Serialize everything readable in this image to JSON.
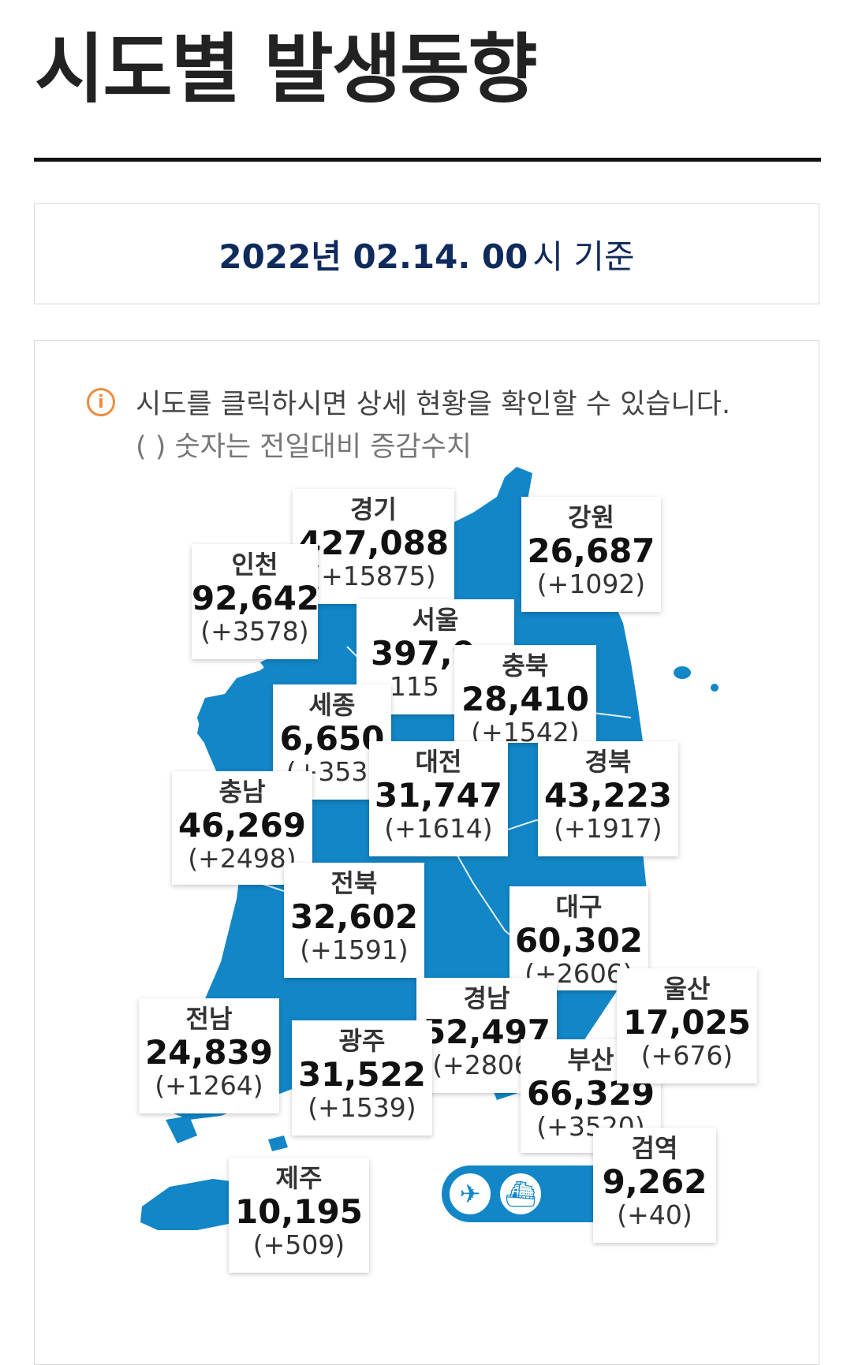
{
  "page": {
    "title": "시도별 발생동향",
    "date_bold": "2022년 02.14. 00",
    "date_suffix": "시 기준"
  },
  "notice": {
    "icon": "info-icon",
    "icon_glyph": "i",
    "line1": "시도를 클릭하시면 상세 현황을 확인할 수 있습니다.",
    "line2": "( ) 숫자는 전일대비 증감수치"
  },
  "colors": {
    "map_fill": "#1286c7",
    "title_navy": "#0f2a5c",
    "info_orange": "#f08a3c"
  },
  "regions": {
    "gyeonggi": {
      "name": "경기",
      "total": "427,088",
      "delta": "(+15875)"
    },
    "incheon": {
      "name": "인천",
      "total": "92,642",
      "delta": "(+3578)"
    },
    "gangwon": {
      "name": "강원",
      "total": "26,687",
      "delta": "(+1092)"
    },
    "seoul": {
      "name": "서울",
      "total": "397,9",
      "delta": "-115"
    },
    "chungbuk": {
      "name": "충북",
      "total": "28,410",
      "delta": "(+1542)"
    },
    "sejong": {
      "name": "세종",
      "total": "6,650",
      "delta": "(+353)"
    },
    "daejeon": {
      "name": "대전",
      "total": "31,747",
      "delta": "(+1614)"
    },
    "gyeongbuk": {
      "name": "경북",
      "total": "43,223",
      "delta": "(+1917)"
    },
    "chungnam": {
      "name": "충남",
      "total": "46,269",
      "delta": "(+2498)"
    },
    "jeonbuk": {
      "name": "전북",
      "total": "32,602",
      "delta": "(+1591)"
    },
    "daegu": {
      "name": "대구",
      "total": "60,302",
      "delta": "(+2606)"
    },
    "ulsan": {
      "name": "울산",
      "total": "17,025",
      "delta": "(+676)"
    },
    "gyeongnam": {
      "name": "경남",
      "total": "52,497",
      "delta": "(+2806)"
    },
    "busan": {
      "name": "부산",
      "total": "66,329",
      "delta": "(+3520)"
    },
    "jeonnam": {
      "name": "전남",
      "total": "24,839",
      "delta": "(+1264)"
    },
    "gwangju": {
      "name": "광주",
      "total": "31,522",
      "delta": "(+1539)"
    },
    "jeju": {
      "name": "제주",
      "total": "10,195",
      "delta": "(+509)"
    },
    "quarantine": {
      "name": "검역",
      "total": "9,262",
      "delta": "(+40)"
    }
  },
  "transport_icons": [
    "airplane-icon",
    "ship-icon"
  ],
  "transport_glyphs": {
    "airplane": "✈",
    "ship": "⛴"
  }
}
